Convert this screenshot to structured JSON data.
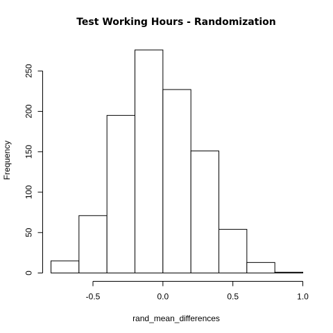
{
  "chart_data": {
    "type": "bar",
    "title": "Test Working Hours - Randomization",
    "xlabel": "rand_mean_differences",
    "ylabel": "Frequency",
    "bins": [
      {
        "start": -0.8,
        "end": -0.6,
        "count": 15
      },
      {
        "start": -0.6,
        "end": -0.4,
        "count": 71
      },
      {
        "start": -0.4,
        "end": -0.2,
        "count": 195
      },
      {
        "start": -0.2,
        "end": 0.0,
        "count": 276
      },
      {
        "start": 0.0,
        "end": 0.2,
        "count": 227
      },
      {
        "start": 0.2,
        "end": 0.4,
        "count": 151
      },
      {
        "start": 0.4,
        "end": 0.6,
        "count": 54
      },
      {
        "start": 0.6,
        "end": 0.8,
        "count": 13
      },
      {
        "start": 0.8,
        "end": 1.0,
        "count": 1
      }
    ],
    "xlim": [
      -0.8,
      1.0
    ],
    "ylim": [
      0,
      276
    ],
    "x_ticks": [
      -0.5,
      0.0,
      0.5,
      1.0
    ],
    "x_tick_labels": [
      "-0.5",
      "0.0",
      "0.5",
      "1.0"
    ],
    "y_ticks": [
      0,
      50,
      100,
      150,
      200,
      250
    ],
    "y_tick_labels": [
      "0",
      "50",
      "100",
      "150",
      "200",
      "250"
    ],
    "grid": false,
    "legend": "none"
  }
}
